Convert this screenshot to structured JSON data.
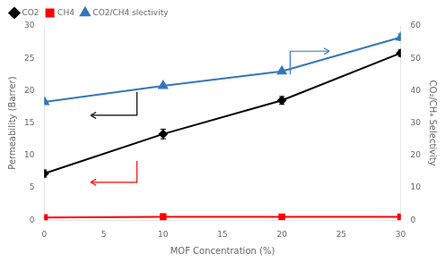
{
  "chart_data": {
    "type": "line",
    "xlabel": "MOF Concentration (%)",
    "ylabel": "Permeability (Barrer)",
    "y2label": "CO₂/CH₄ Selectivity",
    "x": [
      0,
      10,
      20,
      30
    ],
    "series": [
      {
        "name": "CO2",
        "color": "#000000",
        "marker": "diamond",
        "values": [
          7.2,
          13.3,
          18.5,
          25.8
        ],
        "errors": [
          0.55,
          0.75,
          0.6,
          0.5
        ]
      },
      {
        "name": "CH4",
        "color": "#ff0000",
        "marker": "square",
        "values": [
          0.4,
          0.5,
          0.5,
          0.5
        ],
        "errors": [
          0.2,
          0.5,
          0.4,
          0.2
        ]
      },
      {
        "name": "CO2/CH4 slectivity",
        "color": "#3377bb",
        "marker": "triangle",
        "axis": "y2",
        "values": [
          36.5,
          41.5,
          46.0,
          56.5
        ],
        "errors": [
          0.5,
          0.5,
          0.5,
          1.0
        ]
      }
    ],
    "xlim": [
      0,
      30
    ],
    "xticks": [
      0,
      5,
      10,
      15,
      20,
      25,
      30
    ],
    "ylim": [
      0,
      30
    ],
    "yticks": [
      0,
      5,
      10,
      15,
      20,
      25,
      30
    ],
    "y2lim": [
      0,
      60
    ],
    "y2ticks": [
      0,
      10,
      20,
      30,
      40,
      50,
      60
    ],
    "grid": false,
    "legend": "upper left"
  }
}
